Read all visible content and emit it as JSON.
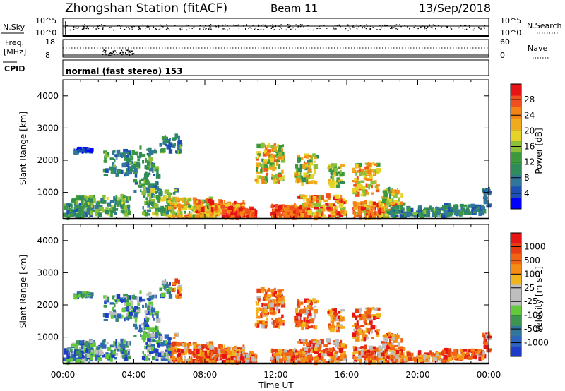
{
  "header": {
    "title": "Zhongshan Station (fitACF)",
    "beam": "Beam 11",
    "date": "13/Sep/2018"
  },
  "sky_panel": {
    "left_label": "N.Sky",
    "right_label": "N.Search",
    "left_ticks": [
      "10^5",
      "10^0"
    ],
    "right_ticks": [
      "10^5",
      "10^0"
    ]
  },
  "freq_panel": {
    "left_label_1": "Freq.",
    "left_label_2": "[MHz]",
    "right_label": "Nave",
    "left_ticks": [
      "18",
      "8"
    ],
    "right_ticks": [
      "60",
      "0"
    ]
  },
  "cpid_panel": {
    "label": "CPID",
    "text": "normal (fast stereo) 153"
  },
  "chart_data": [
    {
      "type": "heatmap",
      "parameter": "Power",
      "ylabel": "Slant Range [km]",
      "colorbar_label": "Power [dB]",
      "ylim": [
        180,
        4500
      ],
      "yticks": [
        "1000",
        "2000",
        "3000",
        "4000"
      ],
      "xlim_hours": [
        0,
        24
      ],
      "colorbar_ticks": [
        "4",
        "8",
        "12",
        "16",
        "20",
        "24",
        "28"
      ],
      "colorbar_colors": [
        "#0000ff",
        "#1e50b4",
        "#32779b",
        "#2f8c5a",
        "#3c9a3c",
        "#8cc03a",
        "#e6d228",
        "#f0aa1e",
        "#f58214",
        "#f0501e",
        "#e61414"
      ]
    },
    {
      "type": "heatmap",
      "parameter": "Velocity",
      "ylabel": "Slant Range [km]",
      "colorbar_label": "Velocity [m s-1]",
      "ylim": [
        180,
        4500
      ],
      "yticks": [
        "1000",
        "2000",
        "3000",
        "4000"
      ],
      "xlabel": "Time UT",
      "xticks": [
        "00:00",
        "04:00",
        "08:00",
        "12:00",
        "16:00",
        "20:00",
        "00:00"
      ],
      "colorbar_ticks": [
        "1000",
        "500",
        "100",
        "25",
        "-25",
        "-100",
        "-500",
        "-1000"
      ],
      "colorbar_colors": [
        "#1e3cc8",
        "#2d64be",
        "#32779b",
        "#3c9650",
        "#64c83c",
        "#bebebe",
        "#bebebe",
        "#f0b41e",
        "#f58c14",
        "#f06414",
        "#e63c14",
        "#e61414"
      ]
    }
  ]
}
